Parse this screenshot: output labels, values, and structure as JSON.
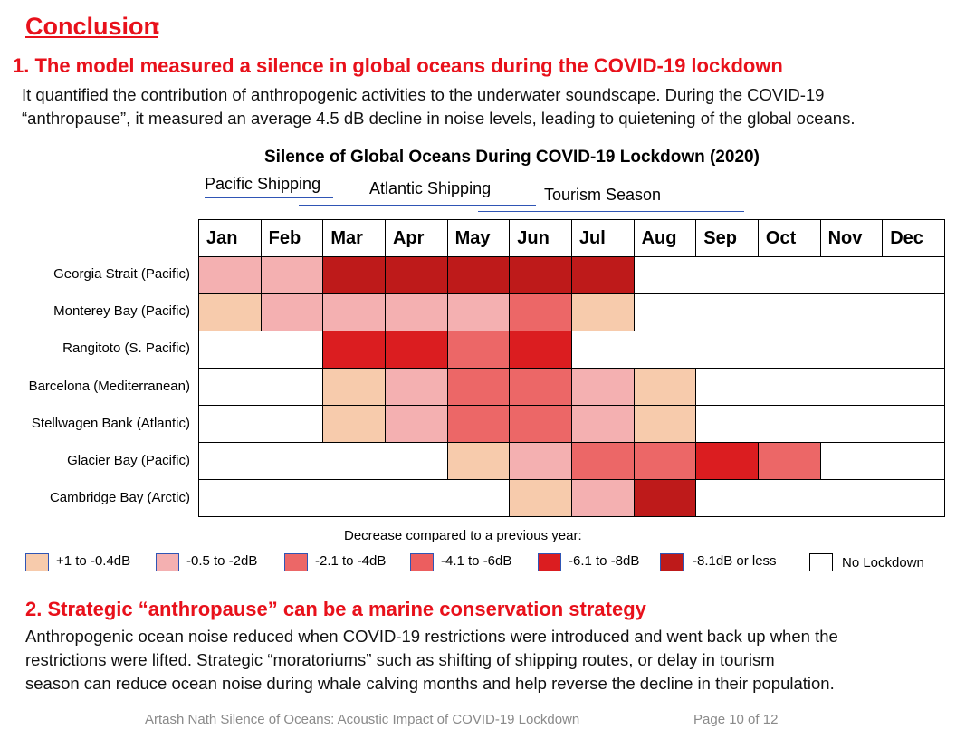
{
  "header": {
    "title": "Conclusion",
    "colon": ":"
  },
  "point1": {
    "heading": "1. The model measured a silence in global oceans during the COVID-19 lockdown",
    "line1": "It quantified the contribution of anthropogenic activities to the underwater soundscape. During the COVID-19",
    "line2": "“anthropause”, it measured an average 4.5 dB decline in noise levels, leading to quietening of the global oceans."
  },
  "chart_data": {
    "type": "heatmap",
    "title": "Silence of Global Oceans During COVID-19 Lockdown (2020)",
    "season_labels": [
      "Pacific Shipping",
      "Atlantic Shipping",
      "Tourism Season"
    ],
    "columns": [
      "Jan",
      "Feb",
      "Mar",
      "Apr",
      "May",
      "Jun",
      "Jul",
      "Aug",
      "Sep",
      "Oct",
      "Nov",
      "Dec"
    ],
    "rows": [
      {
        "label": "Georgia Strait (Pacific)",
        "values": [
          2,
          2,
          6,
          6,
          6,
          6,
          6,
          0,
          0,
          0,
          0,
          0
        ]
      },
      {
        "label": "Monterey Bay (Pacific)",
        "values": [
          1,
          2,
          2,
          2,
          2,
          3,
          1,
          0,
          0,
          0,
          0,
          0
        ]
      },
      {
        "label": "Rangitoto  (S. Pacific)",
        "values": [
          0,
          0,
          5,
          5,
          3,
          5,
          0,
          0,
          0,
          0,
          0,
          0
        ]
      },
      {
        "label": "Barcelona (Mediterranean)",
        "values": [
          0,
          0,
          1,
          2,
          3,
          3,
          2,
          1,
          0,
          0,
          0,
          0
        ]
      },
      {
        "label": "Stellwagen Bank (Atlantic)",
        "values": [
          0,
          0,
          1,
          2,
          3,
          3,
          2,
          1,
          0,
          0,
          0,
          0
        ]
      },
      {
        "label": "Glacier Bay (Pacific)",
        "values": [
          0,
          0,
          0,
          0,
          1,
          2,
          3,
          3,
          5,
          3,
          0,
          0
        ]
      },
      {
        "label": "Cambridge  Bay (Arctic)",
        "values": [
          0,
          0,
          0,
          0,
          0,
          1,
          2,
          6,
          0,
          0,
          0,
          0
        ]
      }
    ],
    "legend_caption": "Decrease compared to a previous year:",
    "legend": [
      {
        "label": "+1 to -0.4dB",
        "color": "#f7cbac"
      },
      {
        "label": "-0.5 to -2dB",
        "color": "#f4b0b1"
      },
      {
        "label": "-2.1 to -4dB",
        "color": "#ec6767"
      },
      {
        "label": "-4.1 to -6dB",
        "color": "#ec5e5f"
      },
      {
        "label": "-6.1 to -8dB",
        "color": "#db1d20"
      },
      {
        "label": "-8.1dB or less",
        "color": "#be1a1a"
      },
      {
        "label": "No Lockdown",
        "color": "#ffffff"
      }
    ]
  },
  "point2": {
    "heading": "2. Strategic “anthropause” can be a marine conservation strategy",
    "line1": "Anthropogenic ocean noise reduced when COVID-19 restrictions were introduced and went back up when the",
    "line2": "restrictions were lifted.  Strategic “moratoriums” such as shifting of shipping routes, or delay in tourism",
    "line3": "season can reduce ocean noise during whale calving months and help reverse the decline in their population."
  },
  "footer": {
    "text": "Artash Nath   Silence of Oceans: Acoustic Impact of COVID-19 Lockdown",
    "page": "Page 10 of 12"
  }
}
